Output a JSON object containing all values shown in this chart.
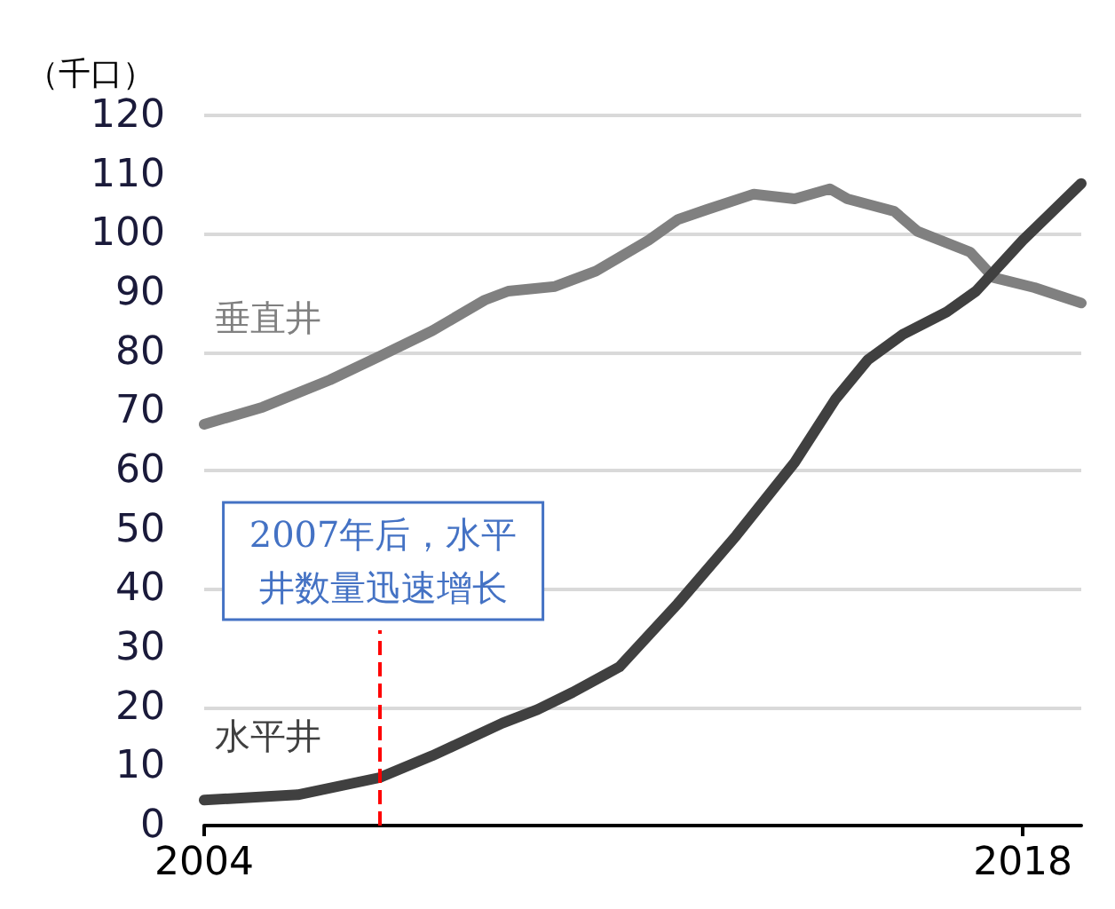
{
  "chart_data": {
    "type": "line",
    "ylabel": "（千口）",
    "xlim": [
      2004,
      2019
    ],
    "xticks": [
      2004,
      2018
    ],
    "ylim": [
      0,
      120
    ],
    "yticks": [
      0,
      10,
      20,
      30,
      40,
      50,
      60,
      70,
      80,
      90,
      100,
      110,
      120
    ],
    "grid": "y",
    "legend": false,
    "marker": "none",
    "line_style": "solid",
    "series": [
      {
        "name": "垂直井",
        "color": "#808080",
        "x": [
          2004,
          2005,
          2006.15,
          2007,
          2007.9,
          2008.8,
          2009.2,
          2010,
          2010.7,
          2011.6,
          2012.1,
          2012.6,
          2013.4,
          2014.1,
          2014.7,
          2015,
          2015.8,
          2016.2,
          2017.1,
          2017.5,
          2018.2,
          2019
        ],
        "values": [
          67.8,
          70.7,
          75.3,
          79.3,
          83.6,
          88.8,
          90.3,
          91.1,
          93.7,
          98.9,
          102.4,
          104.1,
          106.7,
          105.9,
          107.6,
          105.9,
          103.8,
          100.4,
          96.9,
          92.6,
          90.9,
          88.3
        ]
      },
      {
        "name": "水平井",
        "color": "#404040",
        "x": [
          2004,
          2005.6,
          2007,
          2007.9,
          2009.1,
          2009.7,
          2010.3,
          2011.1,
          2012.1,
          2013.1,
          2014.1,
          2014.8,
          2015.35,
          2015.95,
          2016.7,
          2017.2,
          2018,
          2019
        ],
        "values": [
          4.3,
          5.2,
          8.1,
          11.8,
          17.3,
          19.6,
          22.5,
          26.8,
          37.5,
          49,
          61.4,
          72.1,
          78.7,
          83,
          86.8,
          90.3,
          98.9,
          108.5
        ]
      }
    ],
    "ref_lines": [
      {
        "axis": "x",
        "value": 2007,
        "color": "#ff0000",
        "line_style": "dashed"
      }
    ],
    "annotations": [
      {
        "text": "2007年后，水平井数量迅速增长",
        "x": 2007,
        "y": 33
      }
    ]
  }
}
